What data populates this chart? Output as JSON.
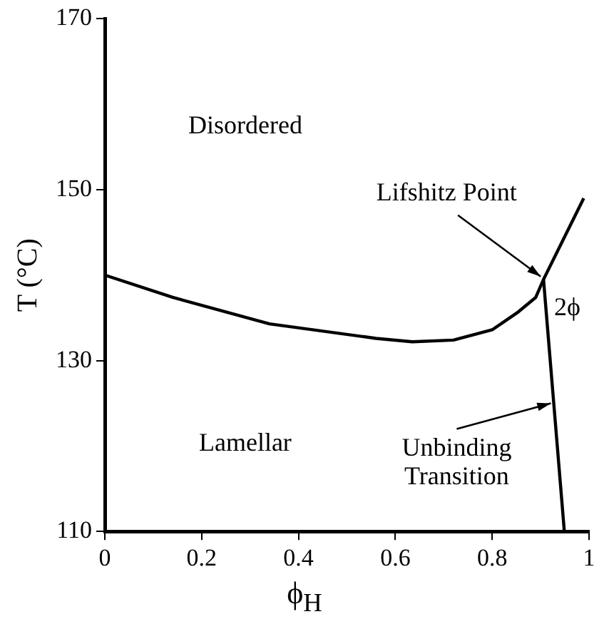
{
  "chart_data": {
    "type": "line",
    "xlabel": "ϕ$_{H}$",
    "ylabel": "T (°C)",
    "xlim": [
      0,
      1
    ],
    "xticks": [
      0,
      0.2,
      0.4,
      0.6,
      0.8,
      1
    ],
    "ylim": [
      110,
      170
    ],
    "yticks": [
      110,
      130,
      150,
      170
    ],
    "grid": false,
    "legend": false,
    "marker": "none",
    "line_style": "solid",
    "series": [
      {
        "color": "#000000",
        "x": [
          0,
          0.14,
          0.34,
          0.56,
          0.635,
          0.72,
          0.8,
          0.854,
          0.89,
          0.906,
          0.989
        ],
        "values": [
          140,
          137.4,
          134.3,
          132.6,
          132.2,
          132.4,
          133.6,
          135.7,
          137.4,
          139.5,
          149
        ]
      },
      {
        "color": "#000000",
        "x": [
          0.906,
          0.949
        ],
        "values": [
          139.5,
          110
        ]
      }
    ],
    "annotations": [
      "Disordered",
      "Lamellar",
      "2ϕ",
      {
        "text": "Lifshitz Point",
        "x": 0.906,
        "y": 139.5
      },
      {
        "text": "Unbinding\nTransition",
        "x": 0.927,
        "y": 125
      }
    ]
  }
}
